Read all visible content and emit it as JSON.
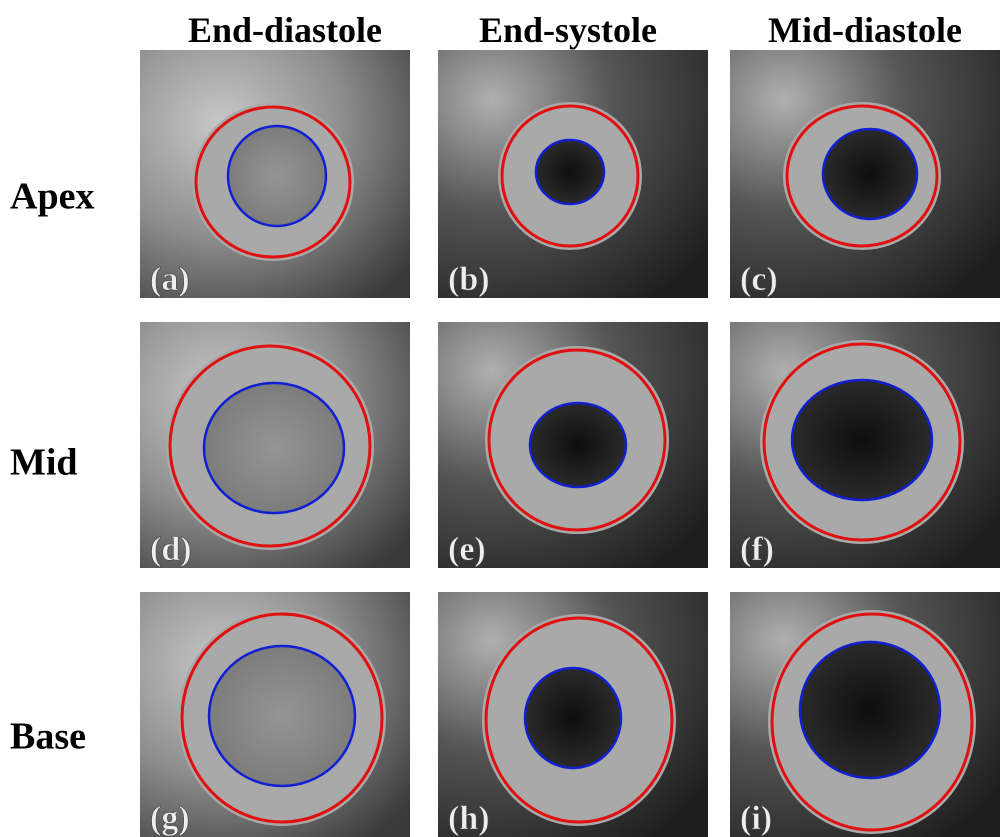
{
  "columns": [
    "End-diastole",
    "End-systole",
    "Mid-diastole"
  ],
  "rows": [
    "Apex",
    "Mid",
    "Base"
  ],
  "panels": [
    [
      "(a)",
      "(b)",
      "(c)"
    ],
    [
      "(d)",
      "(e)",
      "(f)"
    ],
    [
      "(g)",
      "(h)",
      "(i)"
    ]
  ]
}
